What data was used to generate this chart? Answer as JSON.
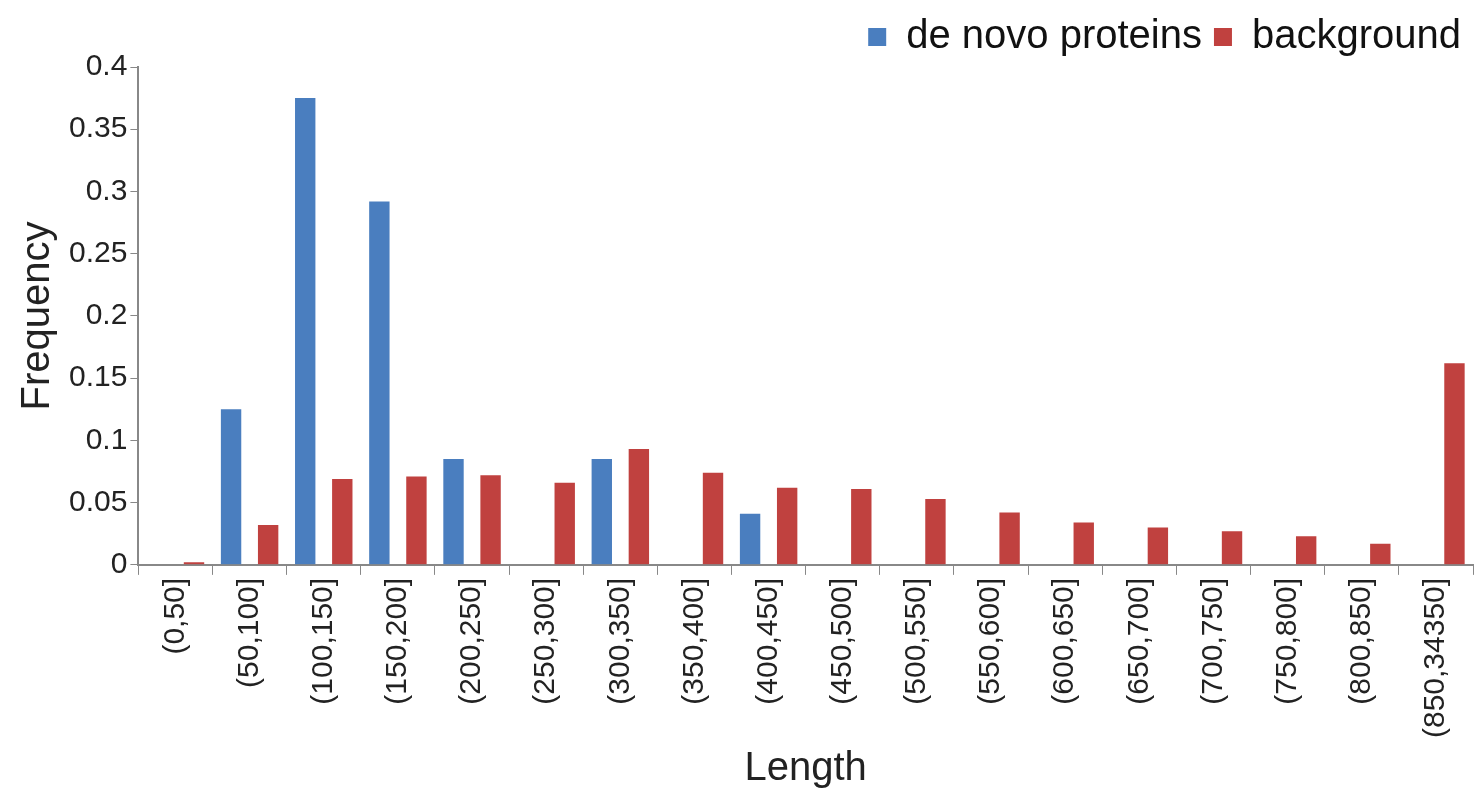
{
  "chart_data": {
    "type": "bar",
    "xlabel": "Length",
    "ylabel": "Frequency",
    "categories": [
      "(0,50]",
      "(50,100]",
      "(100,150]",
      "(150,200]",
      "(200,250]",
      "(250,300]",
      "(300,350]",
      "(350,400]",
      "(400,450]",
      "(450,500]",
      "(500,550]",
      "(550,600]",
      "(600,650]",
      "(650,700]",
      "(700,750]",
      "(750,800]",
      "(800,850]",
      "(850,34350]"
    ],
    "series": [
      {
        "name": "de novo proteins",
        "color": "#4a7ebf",
        "values": [
          0,
          0.125,
          0.375,
          0.292,
          0.085,
          0,
          0.085,
          0,
          0.041,
          0,
          0,
          0,
          0,
          0,
          0,
          0,
          0,
          0
        ]
      },
      {
        "name": "background",
        "color": "#c0413f",
        "values": [
          0.002,
          0.032,
          0.069,
          0.071,
          0.072,
          0.066,
          0.093,
          0.074,
          0.062,
          0.061,
          0.053,
          0.042,
          0.034,
          0.03,
          0.027,
          0.023,
          0.017,
          0.162
        ]
      }
    ],
    "ylim": [
      0,
      0.4
    ],
    "yticks": [
      0,
      0.05,
      0.1,
      0.15,
      0.2,
      0.25,
      0.3,
      0.35,
      0.4
    ],
    "grid": false,
    "legend": "top right"
  }
}
